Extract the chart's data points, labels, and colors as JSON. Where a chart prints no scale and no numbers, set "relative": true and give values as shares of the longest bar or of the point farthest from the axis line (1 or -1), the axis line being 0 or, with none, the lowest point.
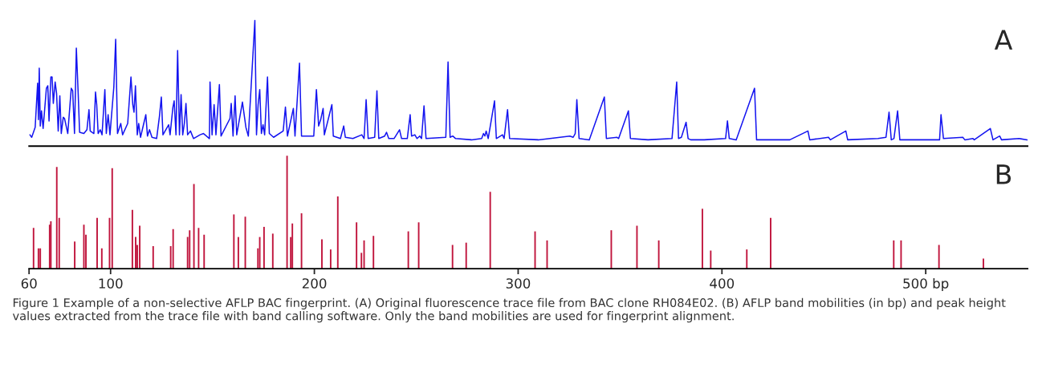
{
  "chart_data": [
    {
      "type": "line",
      "relative": true,
      "xlim": [
        60,
        550
      ],
      "tick_labels": false,
      "grid": false,
      "legend": false,
      "annotations": [
        "A"
      ],
      "series": [
        {
          "color": "#1414f0",
          "x": [
            60.4,
            61.3,
            63.0,
            64.2,
            64.6,
            65.0,
            65.5,
            66.1,
            66.9,
            68.5,
            69.2,
            69.8,
            70.7,
            71.3,
            71.9,
            72.8,
            73.5,
            74.3,
            75.1,
            75.8,
            76.8,
            77.4,
            78.2,
            79.0,
            80.7,
            81.4,
            82.3,
            83.2,
            84.1,
            84.8,
            86.9,
            88.4,
            89.4,
            90.0,
            91.8,
            92.6,
            93.2,
            93.9,
            94.9,
            95.8,
            97.2,
            97.9,
            98.8,
            99.7,
            101.6,
            102.5,
            103.4,
            105.0,
            105.9,
            108.4,
            110.0,
            110.9,
            111.5,
            112.2,
            113.1,
            113.8,
            114.7,
            117.3,
            118.1,
            119.1,
            120.3,
            122.6,
            124.0,
            124.9,
            125.7,
            128.5,
            129.2,
            130.6,
            131.2,
            132.1,
            132.9,
            133.8,
            134.6,
            135.4,
            136.2,
            137.0,
            137.8,
            139.2,
            140.7,
            143.9,
            145.6,
            148.5,
            148.8,
            149.8,
            150.8,
            151.7,
            153.4,
            154.2,
            158.6,
            159.2,
            160.1,
            161.1,
            161.9,
            164.7,
            166.4,
            167.6,
            170.8,
            171.6,
            172.4,
            173.2,
            174.0,
            174.8,
            175.6,
            177.0,
            177.9,
            180.0,
            184.7,
            185.8,
            186.8,
            189.7,
            190.5,
            192.7,
            193.7,
            199.7,
            201.0,
            202.1,
            203.1,
            204.3,
            204.9,
            208.6,
            209.3,
            212.8,
            214.4,
            215.2,
            218.9,
            223.3,
            224.4,
            225.4,
            226.4,
            229.6,
            230.7,
            231.6,
            234.5,
            235.4,
            236.5,
            239.1,
            241.8,
            242.8,
            245.6,
            247.0,
            247.7,
            249.3,
            250.4,
            251.7,
            252.6,
            253.8,
            254.8,
            264.5,
            265.6,
            266.6,
            267.9,
            269.3,
            277.1,
            282.1,
            283.0,
            283.7,
            284.3,
            285.3,
            288.4,
            289.3,
            292.3,
            293.1,
            294.8,
            295.8,
            309.9,
            325.4,
            327.0,
            328.0,
            328.8,
            329.9,
            334.9,
            342.3,
            343.3,
            348.5,
            349.3,
            354.1,
            355.1,
            363.7,
            375.5,
            377.8,
            378.7,
            380.1,
            382.4,
            383.4,
            384.7,
            391.3,
            401.8,
            402.7,
            403.6,
            407.0,
            416.0,
            417.0,
            433.3,
            442.2,
            443.1,
            452.3,
            453.2,
            460.8,
            461.7,
            476.6,
            480.5,
            482.0,
            483.1,
            484.4,
            486.2,
            487.3,
            506.8,
            507.5,
            508.7,
            518.2,
            519.2,
            523.2,
            523.8,
            531.7,
            533.0,
            536.3,
            537.2,
            545.9,
            549.8
          ],
          "values": [
            0.09,
            0.07,
            0.15,
            0.5,
            0.21,
            0.62,
            0.16,
            0.28,
            0.14,
            0.46,
            0.48,
            0.2,
            0.55,
            0.55,
            0.34,
            0.51,
            0.42,
            0.12,
            0.4,
            0.1,
            0.23,
            0.22,
            0.16,
            0.1,
            0.46,
            0.44,
            0.1,
            0.78,
            0.42,
            0.11,
            0.1,
            0.13,
            0.29,
            0.12,
            0.1,
            0.43,
            0.33,
            0.1,
            0.13,
            0.09,
            0.45,
            0.1,
            0.25,
            0.09,
            0.47,
            0.85,
            0.1,
            0.18,
            0.09,
            0.18,
            0.55,
            0.33,
            0.27,
            0.48,
            0.09,
            0.18,
            0.07,
            0.25,
            0.08,
            0.13,
            0.07,
            0.06,
            0.24,
            0.39,
            0.09,
            0.17,
            0.09,
            0.31,
            0.36,
            0.09,
            0.76,
            0.09,
            0.41,
            0.09,
            0.18,
            0.34,
            0.09,
            0.12,
            0.06,
            0.09,
            0.1,
            0.06,
            0.51,
            0.09,
            0.33,
            0.09,
            0.49,
            0.08,
            0.22,
            0.34,
            0.08,
            0.4,
            0.09,
            0.35,
            0.15,
            0.08,
            1,
            0.09,
            0.33,
            0.45,
            0.1,
            0.17,
            0.09,
            0.55,
            0.1,
            0.07,
            0.12,
            0.31,
            0.08,
            0.3,
            0.08,
            0.66,
            0.08,
            0.08,
            0.45,
            0.16,
            0.21,
            0.3,
            0.09,
            0.33,
            0.08,
            0.06,
            0.16,
            0.07,
            0.06,
            0.09,
            0.06,
            0.37,
            0.06,
            0.07,
            0.44,
            0.06,
            0.08,
            0.11,
            0.06,
            0.06,
            0.13,
            0.06,
            0.06,
            0.25,
            0.08,
            0.09,
            0.06,
            0.08,
            0.06,
            0.32,
            0.06,
            0.07,
            0.67,
            0.07,
            0.08,
            0.06,
            0.05,
            0.06,
            0.1,
            0.08,
            0.12,
            0.06,
            0.36,
            0.06,
            0.09,
            0.06,
            0.29,
            0.06,
            0.05,
            0.08,
            0.07,
            0.1,
            0.37,
            0.06,
            0.05,
            0.39,
            0.06,
            0.07,
            0.06,
            0.28,
            0.06,
            0.05,
            0.06,
            0.51,
            0.06,
            0.07,
            0.19,
            0.06,
            0.05,
            0.05,
            0.06,
            0.2,
            0.06,
            0.05,
            0.46,
            0.05,
            0.05,
            0.12,
            0.05,
            0.07,
            0.05,
            0.12,
            0.05,
            0.06,
            0.07,
            0.27,
            0.05,
            0.06,
            0.28,
            0.05,
            0.05,
            0.25,
            0.06,
            0.07,
            0.05,
            0.06,
            0.05,
            0.14,
            0.05,
            0.08,
            0.05,
            0.06,
            0.05
          ]
        }
      ]
    },
    {
      "type": "bar",
      "relative": true,
      "xlim": [
        60,
        550
      ],
      "xticks": [
        60,
        100,
        200,
        300,
        400,
        {
          "value": 500,
          "label": "500 bp"
        }
      ],
      "tick_labels": "x",
      "grid": false,
      "legend": false,
      "annotations": [
        "B",
        "Figure 1 Example of a non-selective AFLP BAC fingerprint. (A) Original fluorescence trace file from BAC clone RH084E02. (B) AFLP band mobilities (in bp) and peak height values extracted from the trace file with band calling software. Only the band mobilities are used for fingerprint alignment."
      ],
      "series": [
        {
          "color": "#c0143c",
          "x": [
            62.2,
            64.6,
            65.5,
            70.1,
            70.7,
            73.6,
            74.8,
            82.4,
            86.9,
            87.9,
            93.4,
            95.7,
            99.5,
            100.8,
            110.7,
            112.3,
            113.1,
            114.3,
            120.9,
            129.5,
            130.7,
            137.8,
            138.8,
            140.9,
            143.2,
            145.9,
            160.5,
            162.7,
            166.1,
            172.3,
            173.2,
            175.3,
            179.6,
            186.6,
            188.4,
            189.2,
            193.7,
            203.7,
            208.0,
            211.5,
            220.7,
            223.1,
            224.4,
            229.0,
            246.1,
            251.2,
            267.8,
            274.5,
            286.3,
            308.3,
            314.2,
            345.7,
            358.3,
            369.0,
            390.4,
            394.5,
            412.2,
            423.9,
            484.3,
            487.9,
            506.5,
            528.3
          ],
          "values": [
            0.36,
            0.18,
            0.18,
            0.39,
            0.42,
            0.9,
            0.45,
            0.24,
            0.39,
            0.3,
            0.45,
            0.18,
            0.45,
            0.89,
            0.52,
            0.28,
            0.21,
            0.38,
            0.2,
            0.2,
            0.35,
            0.28,
            0.34,
            0.75,
            0.36,
            0.3,
            0.48,
            0.28,
            0.46,
            0.18,
            0.28,
            0.37,
            0.31,
            1,
            0.28,
            0.4,
            0.49,
            0.26,
            0.17,
            0.64,
            0.41,
            0.14,
            0.25,
            0.29,
            0.33,
            0.41,
            0.21,
            0.23,
            0.68,
            0.33,
            0.25,
            0.34,
            0.38,
            0.25,
            0.53,
            0.16,
            0.17,
            0.45,
            0.25,
            0.25,
            0.21,
            0.09
          ]
        }
      ]
    }
  ]
}
